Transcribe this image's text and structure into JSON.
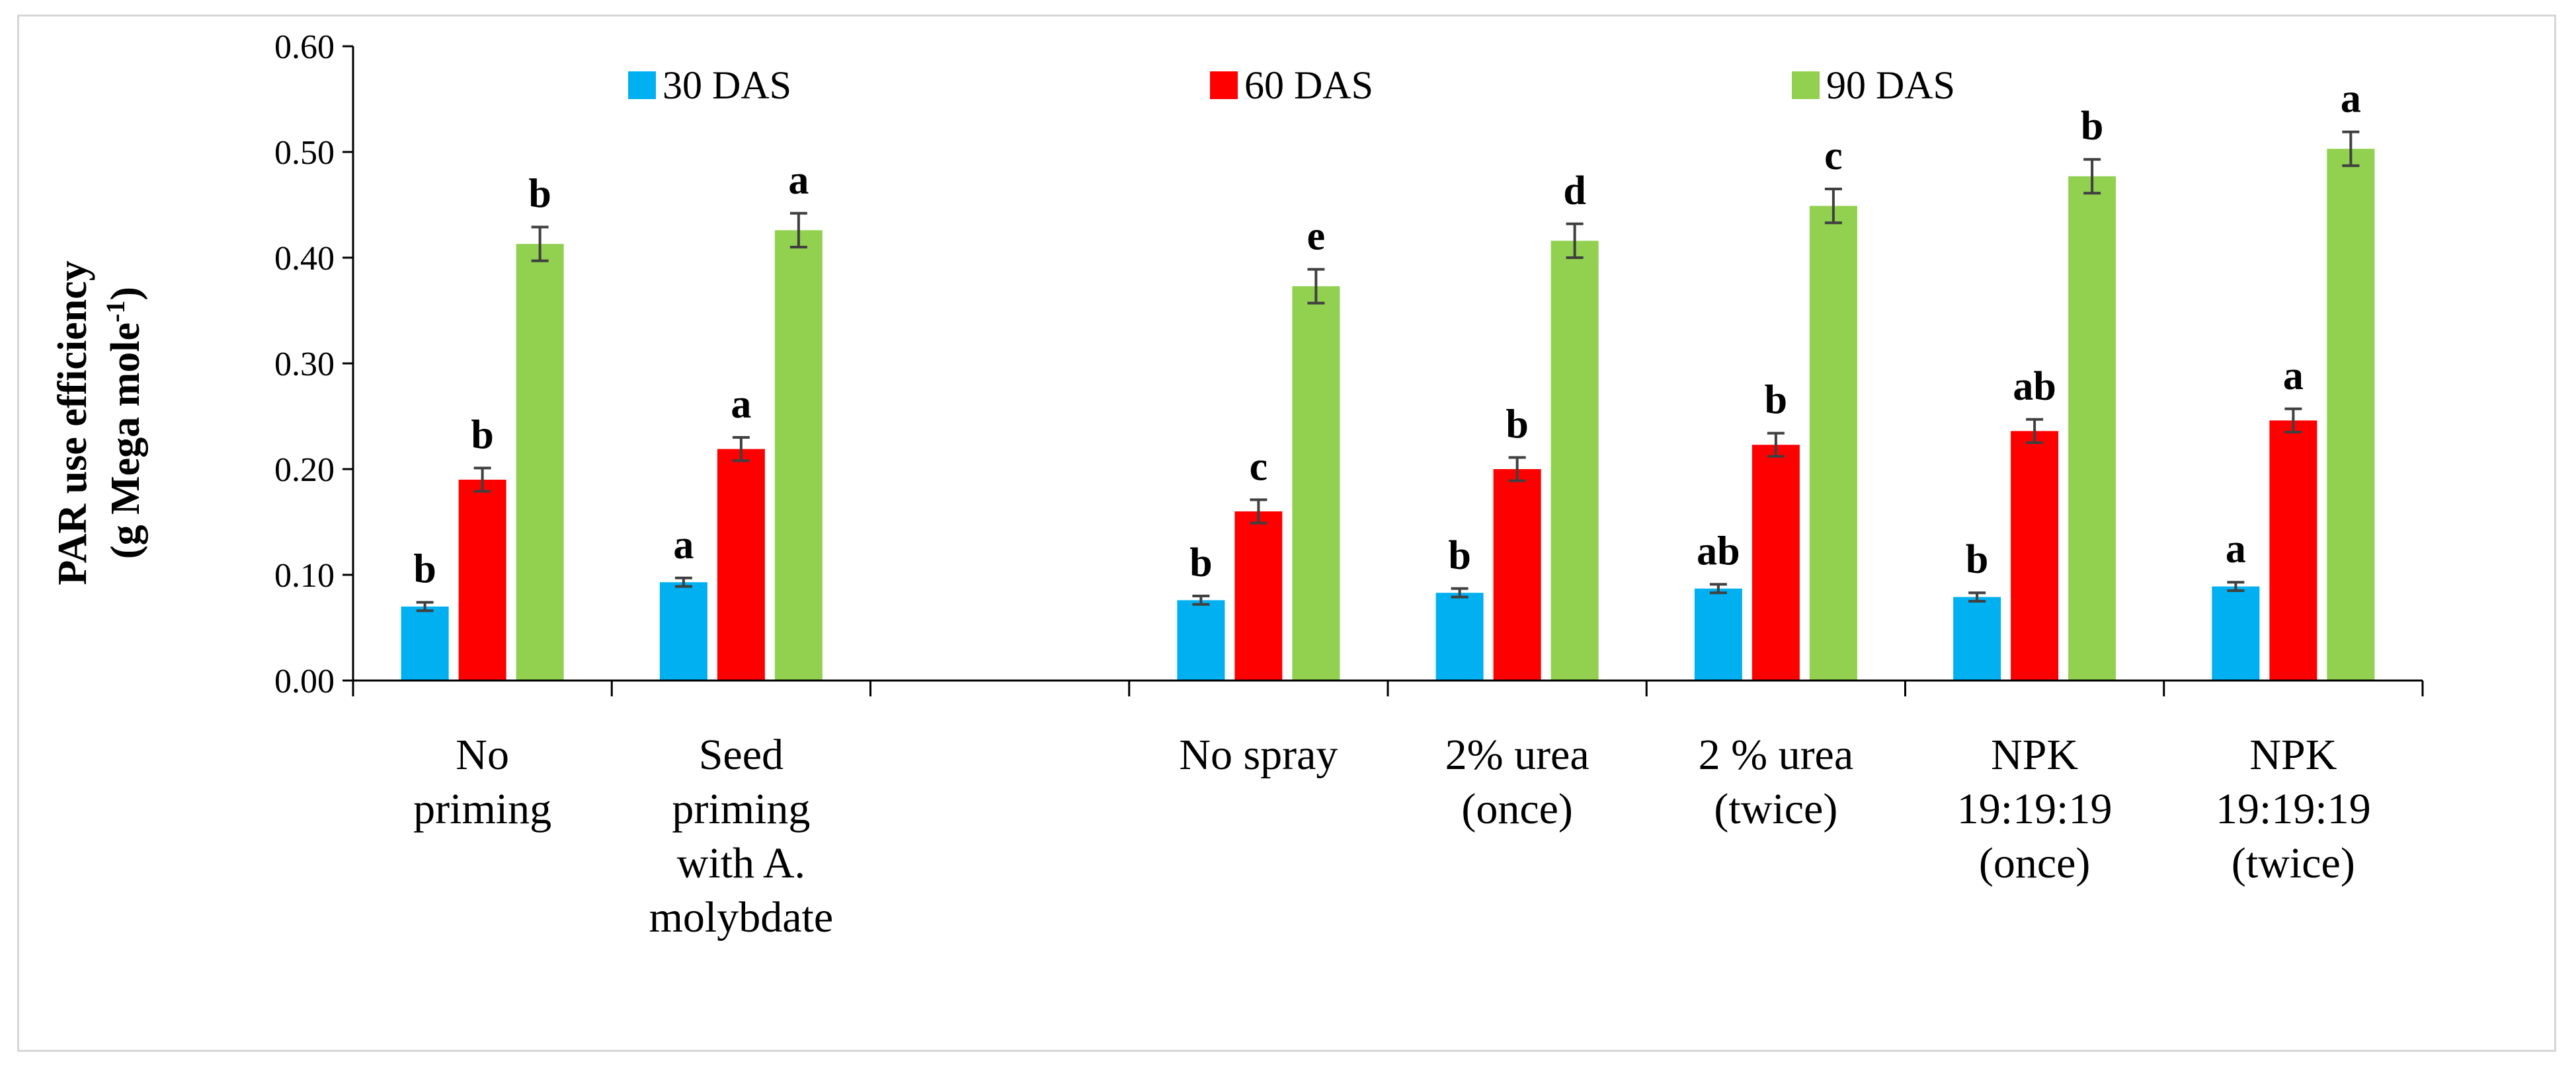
{
  "chart_data": {
    "type": "bar",
    "ylabel": "PAR use efficiency",
    "ylabel_unit_prefix": "(g Mega mole",
    "ylabel_unit_sup": "-1",
    "ylabel_unit_suffix": ")",
    "ylim": [
      0,
      0.6
    ],
    "yticks": [
      "0.00",
      "0.10",
      "0.20",
      "0.30",
      "0.40",
      "0.50",
      "0.60"
    ],
    "ytick_values": [
      0,
      0.1,
      0.2,
      0.3,
      0.4,
      0.5,
      0.6
    ],
    "legend_position": "top",
    "categories": [
      [
        "No",
        "priming"
      ],
      [
        "Seed",
        "priming",
        "with A.",
        "molybdate"
      ],
      [],
      [
        "No spray"
      ],
      [
        "2% urea",
        "(once)"
      ],
      [
        "2 % urea",
        "(twice)"
      ],
      [
        "NPK",
        "19:19:19",
        "(once)"
      ],
      [
        "NPK",
        "19:19:19",
        "(twice)"
      ]
    ],
    "series": [
      {
        "name": "30 DAS",
        "color": "#00b0f0",
        "values": [
          0.07,
          0.093,
          null,
          0.076,
          0.083,
          0.087,
          0.079,
          0.089
        ],
        "errors": [
          0.004,
          0.004,
          null,
          0.004,
          0.004,
          0.004,
          0.004,
          0.004
        ],
        "labels": [
          "b",
          "a",
          "",
          "b",
          "b",
          "ab",
          "b",
          "a"
        ]
      },
      {
        "name": "60 DAS",
        "color": "#ff0000",
        "values": [
          0.19,
          0.219,
          null,
          0.16,
          0.2,
          0.223,
          0.236,
          0.246
        ],
        "errors": [
          0.011,
          0.011,
          null,
          0.011,
          0.011,
          0.011,
          0.011,
          0.011
        ],
        "labels": [
          "b",
          "a",
          "",
          "c",
          "b",
          "b",
          "ab",
          "a"
        ]
      },
      {
        "name": "90 DAS",
        "color": "#92d050",
        "values": [
          0.413,
          0.426,
          null,
          0.373,
          0.416,
          0.449,
          0.477,
          0.503
        ],
        "errors": [
          0.016,
          0.016,
          null,
          0.016,
          0.016,
          0.016,
          0.016,
          0.016
        ],
        "labels": [
          "b",
          "a",
          "",
          "e",
          "d",
          "c",
          "b",
          "a"
        ]
      }
    ]
  }
}
